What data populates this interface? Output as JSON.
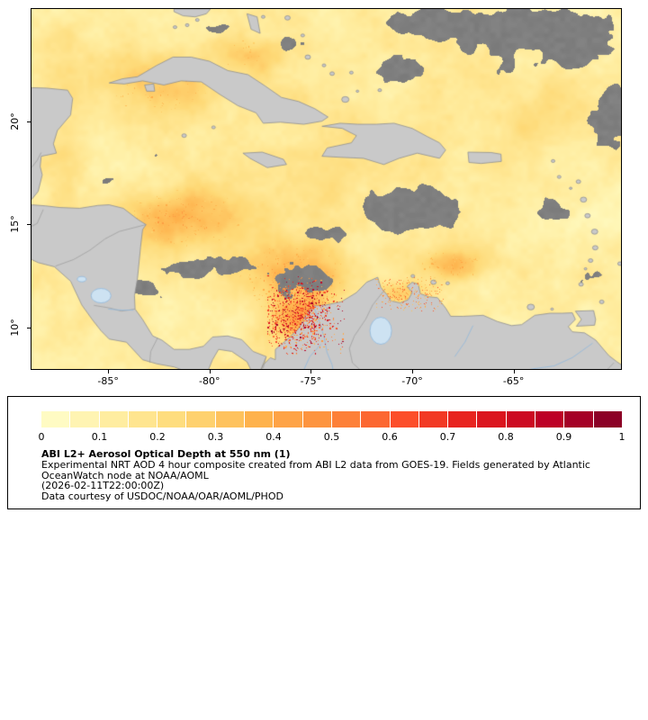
{
  "page": {
    "background": "#ffffff"
  },
  "map": {
    "lat_ticks": [
      {
        "label": "20°",
        "value": 20
      },
      {
        "label": "15°",
        "value": 15
      },
      {
        "label": "10°",
        "value": 10
      }
    ],
    "lon_ticks": [
      {
        "label": "-85°",
        "value": -85
      },
      {
        "label": "-80°",
        "value": -80
      },
      {
        "label": "-75°",
        "value": -75
      },
      {
        "label": "-70°",
        "value": -70
      },
      {
        "label": "-65°",
        "value": -65
      }
    ]
  },
  "legend": {
    "ticks": [
      "0",
      "0.1",
      "0.2",
      "0.3",
      "0.4",
      "0.5",
      "0.6",
      "0.7",
      "0.8",
      "0.9",
      "1"
    ],
    "title": "ABI L2+ Aerosol Optical Depth at 550 nm (1)",
    "description_line1": "Experimental NRT AOD 4 hour composite created from ABI L2 data from GOES-19. Fields generated by Atlantic",
    "description_line2": "OceanWatch node at NOAA/AOML",
    "timestamp": "(2026-02-11T22:00:00Z)",
    "courtesy": "Data courtesy of USDOC/NOAA/OAR/AOML/PHOD"
  },
  "colors": {
    "ramp": [
      "#ffffcc",
      "#ffeda0",
      "#fed976",
      "#feb24c",
      "#fd8d3c",
      "#fc4e2a",
      "#e31a1c",
      "#bd0026",
      "#800026"
    ],
    "cloud_gray": "#7f7f7f",
    "land_gray": "#c9c9c9",
    "land_border": "#8f8f8f",
    "country_border": "#9a9a9a",
    "river_blue": "#8fb8dc",
    "lake_fill": "#cde2f2",
    "frame": "#000000"
  },
  "chart_data": {
    "type": "heatmap",
    "title": "ABI L2+ Aerosol Optical Depth at 550 nm (1)",
    "colorbar": {
      "min": 0,
      "max": 1,
      "tick_step": 0.1,
      "tick_labels": [
        "0",
        "0.1",
        "0.2",
        "0.3",
        "0.4",
        "0.5",
        "0.6",
        "0.7",
        "0.8",
        "0.9",
        "1"
      ],
      "colors": [
        "#ffffcc",
        "#ffeda0",
        "#fed976",
        "#feb24c",
        "#fd8d3c",
        "#fc4e2a",
        "#e31a1c",
        "#bd0026",
        "#800026"
      ]
    },
    "x_axis": {
      "tick_labels": [
        "-85°",
        "-80°",
        "-75°",
        "-70°",
        "-65°"
      ]
    },
    "y_axis": {
      "tick_labels": [
        "20°",
        "15°",
        "10°"
      ]
    },
    "notes": [
      "Experimental NRT AOD 4 hour composite created from ABI L2 data from GOES-19. Fields generated by Atlantic OceanWatch node at NOAA/AOML",
      "(2026-02-11T22:00:00Z)",
      "Data courtesy of USDOC/NOAA/OAR/AOML/PHOD"
    ]
  }
}
